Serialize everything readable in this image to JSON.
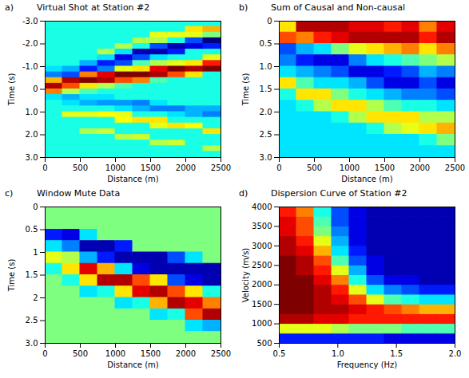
{
  "chart_data": [
    {
      "type": "heatmap",
      "panel": "a)",
      "title": "Virtual Shot at Station #2",
      "x_label": "Distance (m)",
      "y_label": "Time (s)",
      "xlim": [
        0,
        2500
      ],
      "xticks": [
        0,
        500,
        1000,
        1500,
        2000,
        2500
      ],
      "ylim": [
        3.0,
        -3.0
      ],
      "yticks": [
        {
          "value": -3,
          "label": "-3.0"
        },
        {
          "value": -2,
          "label": "-2.0"
        },
        {
          "value": -1,
          "label": "-1.0"
        },
        0,
        {
          "value": 1,
          "label": "1.0"
        },
        {
          "value": 2,
          "label": "2.0"
        },
        {
          "value": 3,
          "label": "3.0"
        }
      ],
      "color_range": [
        -1,
        1
      ],
      "colors": [
        "#00007f",
        "#0000ff",
        "#007fff",
        "#00ffff",
        "#7fff7f",
        "#ffff00",
        "#ff7f00",
        "#ff0000",
        "#7f0000"
      ],
      "cells": {
        "x": [
          125,
          375,
          625,
          875,
          1125,
          1375,
          1625,
          1875,
          2125,
          2375
        ],
        "y": [
          -2.875,
          -2.625,
          -2.375,
          -2.125,
          -1.875,
          -1.625,
          -1.375,
          -1.125,
          -0.875,
          -0.625,
          -0.375,
          -0.125,
          0.125,
          0.375,
          0.625,
          0.875,
          1.125,
          1.375,
          1.625,
          1.875,
          2.125,
          2.375,
          2.625,
          2.875
        ],
        "values": [
          [
            -0.2,
            -0.2,
            -0.2,
            -0.2,
            -0.2,
            -0.2,
            -0.2,
            -0.2,
            -0.3,
            -0.5,
            0.4,
            0.9,
            0.5,
            -0.3,
            -0.2,
            -0.2,
            -0.2,
            -0.2,
            -0.2,
            -0.2,
            -0.2,
            -0.2,
            -0.2,
            -0.2
          ],
          [
            -0.2,
            -0.2,
            -0.2,
            -0.2,
            -0.2,
            -0.2,
            -0.2,
            -0.2,
            -0.4,
            -0.6,
            0.9,
            0.6,
            0.1,
            -0.4,
            -0.3,
            -0.2,
            0.2,
            -0.2,
            -0.2,
            -0.2,
            -0.2,
            -0.2,
            -0.2,
            -0.2
          ],
          [
            -0.2,
            -0.2,
            -0.2,
            -0.2,
            -0.2,
            -0.2,
            -0.2,
            -0.4,
            -0.7,
            0.5,
            1.0,
            0.3,
            -0.1,
            -0.3,
            -0.4,
            -0.2,
            0.2,
            -0.2,
            -0.2,
            0.1,
            -0.2,
            -0.2,
            -0.2,
            -0.2
          ],
          [
            -0.2,
            -0.2,
            -0.2,
            -0.2,
            -0.2,
            0.1,
            -0.3,
            -0.7,
            -0.5,
            0.8,
            0.9,
            0.1,
            -0.2,
            -0.3,
            -0.45,
            -0.2,
            0.25,
            -0.2,
            -0.2,
            0.15,
            -0.2,
            -0.2,
            -0.2,
            -0.2
          ],
          [
            -0.2,
            -0.2,
            -0.2,
            -0.2,
            0.1,
            -0.3,
            -0.8,
            -0.6,
            0.2,
            1.0,
            0.6,
            -0.1,
            -0.2,
            -0.2,
            -0.45,
            -0.3,
            0.2,
            0.25,
            -0.2,
            -0.2,
            0.1,
            -0.2,
            -0.2,
            -0.2
          ],
          [
            -0.2,
            -0.2,
            -0.2,
            0.1,
            -0.2,
            -0.9,
            -0.6,
            -0.1,
            0.3,
            1.0,
            0.5,
            -0.2,
            -0.2,
            -0.2,
            -0.5,
            -0.4,
            -0.2,
            0.3,
            -0.2,
            -0.2,
            0.15,
            -0.2,
            -0.2,
            -0.2
          ],
          [
            -0.2,
            -0.2,
            0.2,
            0.1,
            -0.6,
            -0.9,
            -0.3,
            0.1,
            0.8,
            0.9,
            -0.1,
            -0.2,
            -0.2,
            -0.2,
            -0.3,
            -0.5,
            -0.2,
            0.3,
            0.2,
            -0.2,
            -0.2,
            0.1,
            -0.2,
            -0.2
          ],
          [
            -0.2,
            -0.2,
            0.2,
            -0.2,
            -0.9,
            -0.7,
            -0.2,
            0.2,
            1.0,
            0.6,
            -0.2,
            -0.2,
            -0.2,
            -0.2,
            -0.2,
            -0.5,
            -0.3,
            -0.2,
            0.3,
            -0.2,
            -0.2,
            0.15,
            -0.2,
            -0.2
          ],
          [
            -0.2,
            0.3,
            0.2,
            -0.6,
            -0.8,
            -0.2,
            -0.2,
            0.3,
            0.9,
            0.3,
            -0.2,
            -0.2,
            -0.2,
            -0.2,
            -0.2,
            -0.4,
            -0.4,
            -0.2,
            0.25,
            -0.2,
            -0.2,
            -0.2,
            -0.2,
            -0.2
          ],
          [
            -0.2,
            0.4,
            0.0,
            -1.0,
            -0.7,
            -0.2,
            0.2,
            0.7,
            1.0,
            -0.2,
            -0.2,
            -0.2,
            -0.2,
            -0.2,
            -0.2,
            -0.4,
            -0.5,
            -0.2,
            -0.2,
            0.3,
            -0.2,
            -0.2,
            0.1,
            -0.2
          ]
        ]
      }
    },
    {
      "type": "heatmap",
      "panel": "b)",
      "title": "Sum of  Causal and Non-causal",
      "x_label": "Distance (m)",
      "y_label": "Time (s)",
      "xlim": [
        0,
        2500
      ],
      "xticks": [
        0,
        500,
        1000,
        1500,
        2000,
        2500
      ],
      "ylim": [
        3.0,
        0
      ],
      "yticks": [
        0,
        0.5,
        {
          "value": 1,
          "label": "1.0"
        },
        1.5,
        {
          "value": 2,
          "label": "2.0"
        },
        2.5,
        {
          "value": 3,
          "label": "3.0"
        }
      ],
      "color_range": [
        -1,
        1
      ],
      "colors": [
        "#00007f",
        "#0000ff",
        "#007fff",
        "#00ffff",
        "#7fff7f",
        "#ffff00",
        "#ff7f00",
        "#ff0000",
        "#7f0000"
      ],
      "cells": {
        "x": [
          125,
          375,
          625,
          875,
          1125,
          1375,
          1625,
          1875,
          2125,
          2375
        ],
        "y": [
          0.125,
          0.375,
          0.625,
          0.875,
          1.125,
          1.375,
          1.625,
          1.875,
          2.125,
          2.375,
          2.625,
          2.875
        ],
        "values": [
          [
            0.3,
            0.6,
            -0.6,
            -0.5,
            -0.3,
            0.3,
            -0.2,
            -0.3,
            -0.3,
            -0.3,
            -0.3,
            -0.3
          ],
          [
            0.9,
            0.5,
            -0.4,
            -0.7,
            -0.4,
            -0.1,
            0.3,
            -0.2,
            -0.3,
            -0.3,
            -0.3,
            -0.3
          ],
          [
            0.9,
            0.7,
            -0.3,
            -0.8,
            -0.5,
            -0.3,
            0.3,
            0.1,
            -0.3,
            -0.3,
            -0.3,
            -0.3
          ],
          [
            0.9,
            0.8,
            0.0,
            -0.8,
            -0.6,
            -0.3,
            0.0,
            0.3,
            -0.2,
            -0.3,
            -0.3,
            -0.3
          ],
          [
            0.8,
            0.9,
            0.2,
            -0.5,
            -0.8,
            -0.4,
            -0.2,
            0.3,
            0.1,
            -0.3,
            -0.3,
            -0.3
          ],
          [
            0.8,
            0.9,
            0.3,
            -0.3,
            -0.8,
            -0.6,
            -0.3,
            0.1,
            0.3,
            -0.2,
            -0.3,
            -0.3
          ],
          [
            0.7,
            0.9,
            0.4,
            -0.2,
            -0.7,
            -0.8,
            -0.4,
            -0.1,
            0.3,
            0.1,
            -0.3,
            -0.3
          ],
          [
            0.8,
            0.9,
            0.5,
            -0.1,
            -0.6,
            -0.8,
            -0.5,
            -0.2,
            0.3,
            0.2,
            -0.3,
            -0.3
          ],
          [
            0.5,
            0.7,
            0.3,
            0.0,
            -0.4,
            -0.6,
            -0.5,
            -0.2,
            0.1,
            0.3,
            -0.2,
            -0.3
          ],
          [
            0.8,
            0.9,
            0.5,
            0.1,
            -0.5,
            -0.8,
            -0.6,
            -0.3,
            0.1,
            0.4,
            0.0,
            -0.3
          ]
        ]
      }
    },
    {
      "type": "heatmap",
      "panel": "c)",
      "title": "Window Mute Data",
      "x_label": "Distance (m)",
      "y_label": "Time (s)",
      "xlim": [
        0,
        2500
      ],
      "xticks": [
        0,
        500,
        1000,
        1500,
        2000,
        2500
      ],
      "ylim": [
        3.0,
        0
      ],
      "yticks": [
        0,
        0.5,
        1,
        1.5,
        2,
        2.5,
        {
          "value": 3,
          "label": "3.0"
        }
      ],
      "color_range": [
        -1,
        1
      ],
      "colors": [
        "#00007f",
        "#0000ff",
        "#007fff",
        "#00ffff",
        "#7fff7f",
        "#ffff00",
        "#ff7f00",
        "#ff0000",
        "#7f0000"
      ],
      "cells": {
        "x": [
          125,
          375,
          625,
          875,
          1125,
          1375,
          1625,
          1875,
          2125,
          2375
        ],
        "y": [
          0.125,
          0.375,
          0.625,
          0.875,
          1.125,
          1.375,
          1.625,
          1.875,
          2.125,
          2.375,
          2.625,
          2.875
        ],
        "values": [
          [
            0,
            0,
            -0.7,
            -0.3,
            0.2,
            -0.2,
            0,
            0,
            0,
            0,
            0,
            0
          ],
          [
            0,
            0,
            -0.8,
            -0.5,
            0.1,
            0.3,
            -0.2,
            0,
            0,
            0,
            0,
            0
          ],
          [
            0,
            0,
            -0.3,
            -0.9,
            -0.4,
            0.8,
            0.3,
            -0.3,
            0,
            0,
            0,
            0
          ],
          [
            0,
            0,
            0,
            -0.9,
            -0.7,
            0.4,
            0.9,
            -0.2,
            0,
            0,
            0,
            0
          ],
          [
            0,
            0,
            0,
            -0.7,
            -0.9,
            -0.3,
            0.9,
            0.3,
            -0.3,
            0,
            0,
            0
          ],
          [
            0,
            0,
            0,
            0,
            -0.9,
            -0.8,
            0.6,
            0.8,
            -0.2,
            0,
            0,
            0
          ],
          [
            0,
            0,
            0,
            0,
            -0.9,
            -0.9,
            0.3,
            0.9,
            0.4,
            -0.3,
            0,
            0
          ],
          [
            0,
            0,
            0,
            0,
            -0.6,
            -0.9,
            -0.6,
            0.6,
            0.9,
            -0.2,
            0,
            0
          ],
          [
            0,
            0,
            0,
            0,
            -0.3,
            -0.9,
            -0.8,
            0.3,
            0.8,
            0.6,
            -0.3,
            0
          ],
          [
            0,
            0,
            0,
            0,
            0,
            -0.9,
            -0.9,
            -0.2,
            0.5,
            0.9,
            -0.4,
            0
          ]
        ]
      }
    },
    {
      "type": "heatmap",
      "panel": "d)",
      "title": "Dispersion Curve of Station #2",
      "x_label": "Frequency (Hz)",
      "y_label": "Velocity (m/s)",
      "xlim": [
        0.5,
        2.0
      ],
      "xticks": [
        0.5,
        {
          "value": 1,
          "label": "1.0"
        },
        1.5,
        {
          "value": 2,
          "label": "2.0"
        }
      ],
      "ylim": [
        500,
        4000
      ],
      "yticks": [
        500,
        1000,
        1500,
        2000,
        2500,
        3000,
        3500,
        4000
      ],
      "color_range": [
        0,
        1
      ],
      "colors": [
        "#00007f",
        "#0000ff",
        "#007fff",
        "#00ffff",
        "#7fff7f",
        "#ffff00",
        "#ff7f00",
        "#ff0000",
        "#7f0000"
      ],
      "cells": {
        "x": [
          0.575,
          0.725,
          0.875,
          1.025,
          1.175,
          1.325,
          1.475,
          1.625,
          1.775,
          1.925
        ],
        "y": [
          625,
          875,
          1125,
          1375,
          1625,
          1875,
          2125,
          2375,
          2625,
          2875,
          3125,
          3375,
          3625,
          3875
        ],
        "values": [
          [
            0.15,
            0.6,
            0.95,
            1,
            1,
            1,
            1,
            1,
            1,
            0.95,
            0.95,
            0.9,
            0.9,
            0.85
          ],
          [
            0.15,
            0.6,
            0.95,
            1,
            1,
            1,
            1,
            0.95,
            0.95,
            0.9,
            0.85,
            0.8,
            0.8,
            0.75
          ],
          [
            0.15,
            0.6,
            0.9,
            0.95,
            0.95,
            0.95,
            0.9,
            0.85,
            0.8,
            0.7,
            0.6,
            0.5,
            0.45,
            0.4
          ],
          [
            0.15,
            0.55,
            0.9,
            0.95,
            0.9,
            0.85,
            0.75,
            0.6,
            0.45,
            0.35,
            0.3,
            0.25,
            0.2,
            0.2
          ],
          [
            0.15,
            0.5,
            0.85,
            0.9,
            0.8,
            0.6,
            0.4,
            0.3,
            0.2,
            0.15,
            0.1,
            0.1,
            0.1,
            0.1
          ],
          [
            0.15,
            0.5,
            0.85,
            0.85,
            0.6,
            0.35,
            0.2,
            0.1,
            0.1,
            0.05,
            0.05,
            0.05,
            0.05,
            0.05
          ],
          [
            0.1,
            0.5,
            0.85,
            0.8,
            0.45,
            0.25,
            0.1,
            0.05,
            0.05,
            0.05,
            0.05,
            0.05,
            0.05,
            0.05
          ],
          [
            0.1,
            0.45,
            0.85,
            0.75,
            0.4,
            0.2,
            0.1,
            0.05,
            0.05,
            0.05,
            0.05,
            0.05,
            0.05,
            0.05
          ],
          [
            0.1,
            0.45,
            0.85,
            0.7,
            0.35,
            0.15,
            0.05,
            0.05,
            0.05,
            0.05,
            0.05,
            0.05,
            0.05,
            0.05
          ],
          [
            0.1,
            0.45,
            0.85,
            0.7,
            0.35,
            0.15,
            0.05,
            0.05,
            0.05,
            0.05,
            0.05,
            0.05,
            0.05,
            0.05
          ]
        ]
      }
    }
  ]
}
